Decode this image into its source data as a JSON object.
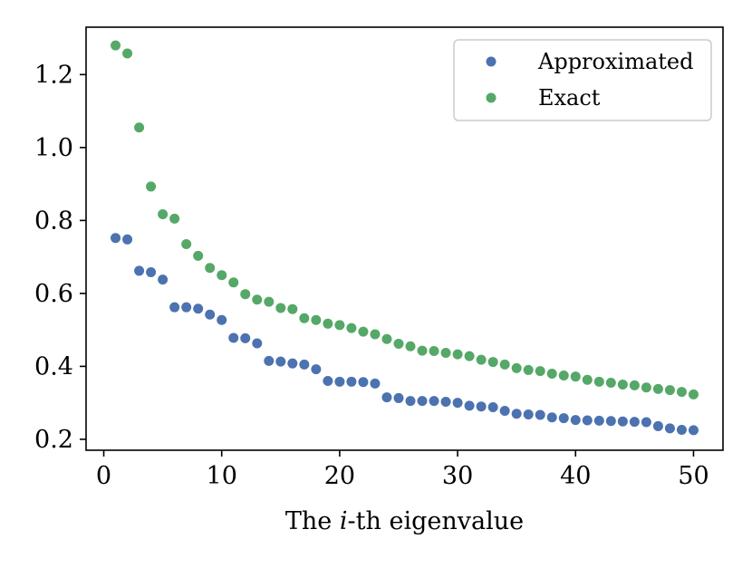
{
  "chart_data": {
    "type": "scatter",
    "title": "",
    "xlabel_prefix": "The ",
    "xlabel_italic": "i",
    "xlabel_suffix": "-th eigenvalue",
    "ylabel": "",
    "xlim": [
      -1.5,
      52.5
    ],
    "ylim": [
      0.17,
      1.33
    ],
    "xticks": [
      0,
      10,
      20,
      30,
      40,
      50
    ],
    "xtick_labels": [
      "0",
      "10",
      "20",
      "30",
      "40",
      "50"
    ],
    "yticks": [
      0.2,
      0.4,
      0.6,
      0.8,
      1.0,
      1.2
    ],
    "ytick_labels": [
      "0.2",
      "0.4",
      "0.6",
      "0.8",
      "1.0",
      "1.2"
    ],
    "grid": false,
    "legend_position": "top-right",
    "x": [
      1,
      2,
      3,
      4,
      5,
      6,
      7,
      8,
      9,
      10,
      11,
      12,
      13,
      14,
      15,
      16,
      17,
      18,
      19,
      20,
      21,
      22,
      23,
      24,
      25,
      26,
      27,
      28,
      29,
      30,
      31,
      32,
      33,
      34,
      35,
      36,
      37,
      38,
      39,
      40,
      41,
      42,
      43,
      44,
      45,
      46,
      47,
      48,
      49,
      50
    ],
    "series": [
      {
        "name": "Approximated",
        "color": "#4c72b0",
        "values": [
          0.752,
          0.748,
          0.662,
          0.658,
          0.638,
          0.562,
          0.562,
          0.558,
          0.542,
          0.527,
          0.478,
          0.477,
          0.463,
          0.415,
          0.413,
          0.408,
          0.405,
          0.392,
          0.36,
          0.358,
          0.358,
          0.357,
          0.353,
          0.315,
          0.313,
          0.305,
          0.305,
          0.305,
          0.303,
          0.3,
          0.292,
          0.29,
          0.288,
          0.278,
          0.27,
          0.268,
          0.267,
          0.26,
          0.258,
          0.253,
          0.252,
          0.251,
          0.25,
          0.249,
          0.248,
          0.247,
          0.236,
          0.23,
          0.226,
          0.225
        ]
      },
      {
        "name": "Exact",
        "color": "#55a868",
        "values": [
          1.28,
          1.258,
          1.055,
          0.893,
          0.817,
          0.805,
          0.735,
          0.703,
          0.67,
          0.65,
          0.63,
          0.598,
          0.583,
          0.577,
          0.56,
          0.557,
          0.532,
          0.527,
          0.517,
          0.513,
          0.505,
          0.495,
          0.488,
          0.475,
          0.462,
          0.455,
          0.443,
          0.442,
          0.437,
          0.433,
          0.428,
          0.418,
          0.412,
          0.405,
          0.395,
          0.39,
          0.387,
          0.38,
          0.375,
          0.372,
          0.363,
          0.358,
          0.355,
          0.35,
          0.348,
          0.342,
          0.338,
          0.335,
          0.33,
          0.323
        ]
      }
    ]
  }
}
